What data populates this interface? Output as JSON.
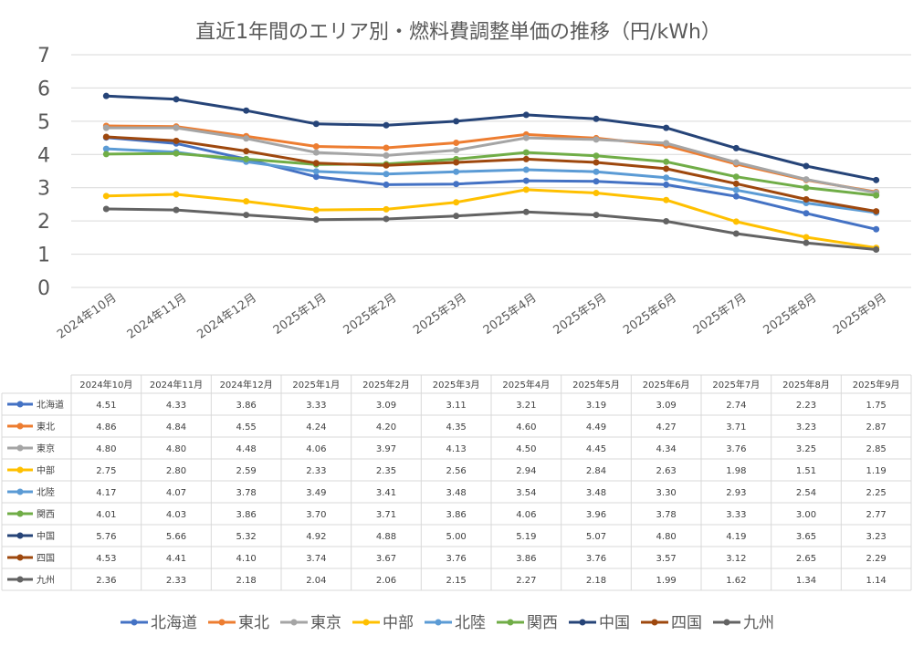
{
  "chart_data": {
    "type": "line",
    "title": "直近1年間のエリア別・燃料費調整単価の推移（円/kWh）",
    "xlabel": "",
    "ylabel": "",
    "ylim": [
      0,
      7
    ],
    "yticks": [
      0,
      1,
      2,
      3,
      4,
      5,
      6,
      7
    ],
    "grid": "horizontal",
    "legend_position": "bottom",
    "data_table": true,
    "categories": [
      "2024年10月",
      "2024年11月",
      "2024年12月",
      "2025年1月",
      "2025年2月",
      "2025年3月",
      "2025年4月",
      "2025年5月",
      "2025年6月",
      "2025年7月",
      "2025年8月",
      "2025年9月"
    ],
    "series": [
      {
        "name": "北海道",
        "color": "#4472C4",
        "values": [
          4.51,
          4.33,
          3.86,
          3.33,
          3.09,
          3.11,
          3.21,
          3.19,
          3.09,
          2.74,
          2.23,
          1.75
        ]
      },
      {
        "name": "東北",
        "color": "#ED7D31",
        "values": [
          4.86,
          4.84,
          4.55,
          4.24,
          4.2,
          4.35,
          4.6,
          4.49,
          4.27,
          3.71,
          3.23,
          2.87
        ]
      },
      {
        "name": "東京",
        "color": "#A5A5A5",
        "values": [
          4.8,
          4.8,
          4.48,
          4.06,
          3.97,
          4.13,
          4.5,
          4.45,
          4.34,
          3.76,
          3.25,
          2.85
        ]
      },
      {
        "name": "中部",
        "color": "#FFC000",
        "values": [
          2.75,
          2.8,
          2.59,
          2.33,
          2.35,
          2.56,
          2.94,
          2.84,
          2.63,
          1.98,
          1.51,
          1.19
        ]
      },
      {
        "name": "北陸",
        "color": "#5B9BD5",
        "values": [
          4.17,
          4.07,
          3.78,
          3.49,
          3.41,
          3.48,
          3.54,
          3.48,
          3.3,
          2.93,
          2.54,
          2.25
        ]
      },
      {
        "name": "関西",
        "color": "#70AD47",
        "values": [
          4.01,
          4.03,
          3.86,
          3.7,
          3.71,
          3.86,
          4.06,
          3.96,
          3.78,
          3.33,
          3.0,
          2.77
        ]
      },
      {
        "name": "中国",
        "color": "#264478",
        "values": [
          5.76,
          5.66,
          5.32,
          4.92,
          4.88,
          5.0,
          5.19,
          5.07,
          4.8,
          4.19,
          3.65,
          3.23
        ]
      },
      {
        "name": "四国",
        "color": "#9E480E",
        "values": [
          4.53,
          4.41,
          4.1,
          3.74,
          3.67,
          3.76,
          3.86,
          3.76,
          3.57,
          3.12,
          2.65,
          2.29
        ]
      },
      {
        "name": "九州",
        "color": "#636363",
        "values": [
          2.36,
          2.33,
          2.18,
          2.04,
          2.06,
          2.15,
          2.27,
          2.18,
          1.99,
          1.62,
          1.34,
          1.14
        ]
      }
    ]
  }
}
